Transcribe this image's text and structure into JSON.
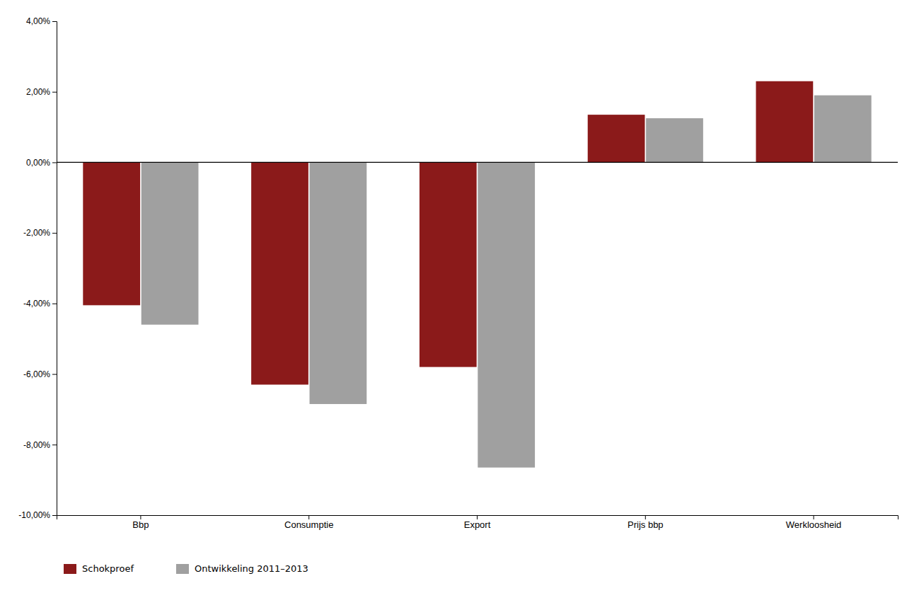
{
  "chart_data": {
    "type": "bar",
    "categories": [
      "Bbp",
      "Consumptie",
      "Export",
      "Prijs bbp",
      "Werkloosheid"
    ],
    "series": [
      {
        "name": "Schokproef",
        "color": "#8B1A1A",
        "values": [
          -0.0405,
          -0.063,
          -0.058,
          0.0135,
          0.023
        ]
      },
      {
        "name": "Ontwikkeling 2011–2013",
        "color": "#A0A0A0",
        "values": [
          -0.046,
          -0.0685,
          -0.0865,
          0.0125,
          0.019
        ]
      }
    ],
    "ylim": [
      -0.1,
      0.04
    ],
    "yticks": [
      {
        "value": -0.1,
        "label": "-10,00%"
      },
      {
        "value": -0.08,
        "label": "-8,00%"
      },
      {
        "value": -0.06,
        "label": "-6,00%"
      },
      {
        "value": -0.04,
        "label": "-4,00%"
      },
      {
        "value": -0.02,
        "label": "-2,00%"
      },
      {
        "value": 0.0,
        "label": "0,00%"
      },
      {
        "value": 0.02,
        "label": "2,00%"
      },
      {
        "value": 0.04,
        "label": "4,00%"
      }
    ],
    "grid": false,
    "legend": "lower left"
  }
}
